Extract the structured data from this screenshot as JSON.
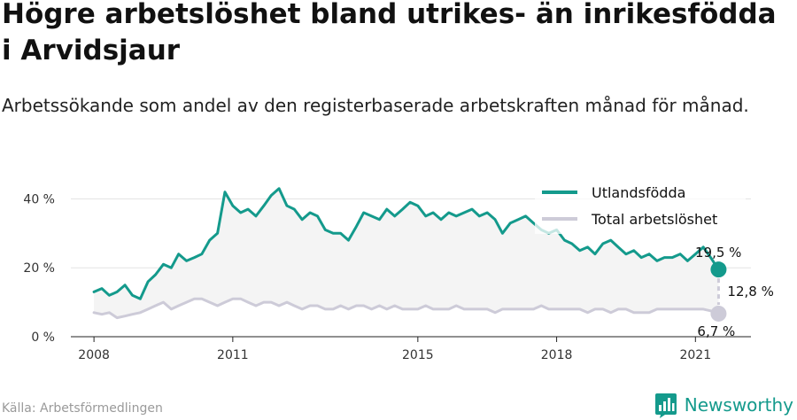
{
  "header": {
    "title": "Högre arbetslöshet bland utrikes- än inrikesfödda i Arvidsjaur",
    "subtitle": "Arbetssökande som andel av den registerbaserade arbetskraften månad för månad."
  },
  "footer": {
    "source": "Källa: Arbetsförmedlingen",
    "brand": "Newsworthy"
  },
  "colors": {
    "foreign": "#149a8c",
    "total": "#cdcbd8",
    "fill": "#f4f4f4",
    "brand": "#149a8c"
  },
  "chart_data": {
    "type": "line",
    "y_ticks": [
      0,
      20,
      40
    ],
    "y_tick_labels": [
      "0 %",
      "20 %",
      "40 %"
    ],
    "x_ticks": [
      2008,
      2011,
      2015,
      2018,
      2021
    ],
    "ylim": [
      0,
      45
    ],
    "legend_position": "top-right",
    "series": [
      {
        "name": "Utlandsfödda",
        "color": "#149a8c",
        "x": [
          2008.0,
          2008.17,
          2008.33,
          2008.5,
          2008.67,
          2008.83,
          2009.0,
          2009.17,
          2009.33,
          2009.5,
          2009.67,
          2009.83,
          2010.0,
          2010.17,
          2010.33,
          2010.5,
          2010.67,
          2010.83,
          2011.0,
          2011.17,
          2011.33,
          2011.5,
          2011.67,
          2011.83,
          2012.0,
          2012.17,
          2012.33,
          2012.5,
          2012.67,
          2012.83,
          2013.0,
          2013.17,
          2013.33,
          2013.5,
          2013.67,
          2013.83,
          2014.0,
          2014.17,
          2014.33,
          2014.5,
          2014.67,
          2014.83,
          2015.0,
          2015.17,
          2015.33,
          2015.5,
          2015.67,
          2015.83,
          2016.0,
          2016.17,
          2016.33,
          2016.5,
          2016.67,
          2016.83,
          2017.0,
          2017.17,
          2017.33,
          2017.5,
          2017.67,
          2017.83,
          2018.0,
          2018.17,
          2018.33,
          2018.5,
          2018.67,
          2018.83,
          2019.0,
          2019.17,
          2019.33,
          2019.5,
          2019.67,
          2019.83,
          2020.0,
          2020.17,
          2020.33,
          2020.5,
          2020.67,
          2020.83,
          2021.0,
          2021.17,
          2021.33,
          2021.5
        ],
        "values": [
          13,
          14,
          12,
          13,
          15,
          12,
          11,
          16,
          18,
          21,
          20,
          24,
          22,
          23,
          24,
          28,
          30,
          42,
          38,
          36,
          37,
          35,
          38,
          41,
          43,
          38,
          37,
          34,
          36,
          35,
          31,
          30,
          30,
          28,
          32,
          36,
          35,
          34,
          37,
          35,
          37,
          39,
          38,
          35,
          36,
          34,
          36,
          35,
          36,
          37,
          35,
          36,
          34,
          30,
          33,
          34,
          35,
          33,
          31,
          30,
          31,
          28,
          27,
          25,
          26,
          24,
          27,
          28,
          26,
          24,
          25,
          23,
          24,
          22,
          23,
          23,
          24,
          22,
          24,
          26,
          23,
          19.5
        ]
      },
      {
        "name": "Total arbetslöshet",
        "color": "#cdcbd8",
        "x": [
          2008.0,
          2008.17,
          2008.33,
          2008.5,
          2008.67,
          2008.83,
          2009.0,
          2009.17,
          2009.33,
          2009.5,
          2009.67,
          2009.83,
          2010.0,
          2010.17,
          2010.33,
          2010.5,
          2010.67,
          2010.83,
          2011.0,
          2011.17,
          2011.33,
          2011.5,
          2011.67,
          2011.83,
          2012.0,
          2012.17,
          2012.33,
          2012.5,
          2012.67,
          2012.83,
          2013.0,
          2013.17,
          2013.33,
          2013.5,
          2013.67,
          2013.83,
          2014.0,
          2014.17,
          2014.33,
          2014.5,
          2014.67,
          2014.83,
          2015.0,
          2015.17,
          2015.33,
          2015.5,
          2015.67,
          2015.83,
          2016.0,
          2016.17,
          2016.33,
          2016.5,
          2016.67,
          2016.83,
          2017.0,
          2017.17,
          2017.33,
          2017.5,
          2017.67,
          2017.83,
          2018.0,
          2018.17,
          2018.33,
          2018.5,
          2018.67,
          2018.83,
          2019.0,
          2019.17,
          2019.33,
          2019.5,
          2019.67,
          2019.83,
          2020.0,
          2020.17,
          2020.33,
          2020.5,
          2020.67,
          2020.83,
          2021.0,
          2021.17,
          2021.33,
          2021.5
        ],
        "values": [
          7,
          6.5,
          7,
          5.5,
          6,
          6.5,
          7,
          8,
          9,
          10,
          8,
          9,
          10,
          11,
          11,
          10,
          9,
          10,
          11,
          11,
          10,
          9,
          10,
          10,
          9,
          10,
          9,
          8,
          9,
          9,
          8,
          8,
          9,
          8,
          9,
          9,
          8,
          9,
          8,
          9,
          8,
          8,
          8,
          9,
          8,
          8,
          8,
          9,
          8,
          8,
          8,
          8,
          7,
          8,
          8,
          8,
          8,
          8,
          9,
          8,
          8,
          8,
          8,
          8,
          7,
          8,
          8,
          7,
          8,
          8,
          7,
          7,
          7,
          8,
          8,
          8,
          8,
          8,
          8,
          8,
          7.5,
          6.7
        ]
      }
    ],
    "annotations": {
      "last_foreign": "19,5 %",
      "gap": "12,8 %",
      "last_total": "6,7 %"
    }
  }
}
